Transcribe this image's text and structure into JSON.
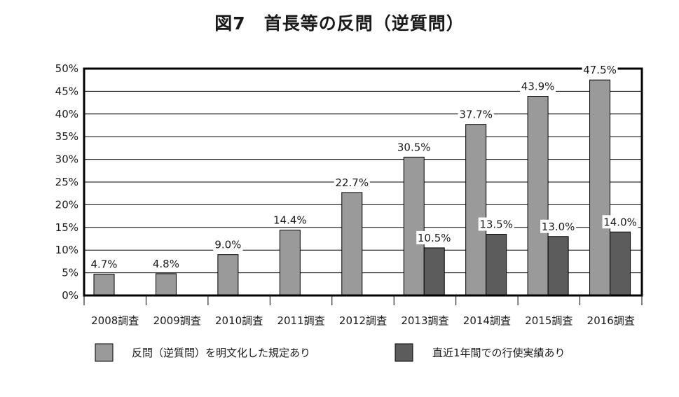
{
  "chart_data": {
    "type": "bar",
    "title": "図7　首長等の反問（逆質問）",
    "categories": [
      "2008調査",
      "2009調査",
      "2010調査",
      "2011調査",
      "2012調査",
      "2013調査",
      "2014調査",
      "2015調査",
      "2016調査"
    ],
    "series": [
      {
        "name": "反問（逆質問）を明文化した規定あり",
        "color": "#9a9a9a",
        "values": [
          4.7,
          4.8,
          9.0,
          14.4,
          22.7,
          30.5,
          37.7,
          43.9,
          47.5
        ],
        "labels": [
          "4.7%",
          "4.8%",
          "9.0%",
          "14.4%",
          "22.7%",
          "30.5%",
          "37.7%",
          "43.9%",
          "47.5%"
        ]
      },
      {
        "name": "直近1年間での行使実績あり",
        "color": "#5c5c5c",
        "values": [
          null,
          null,
          null,
          null,
          null,
          10.5,
          13.5,
          13.0,
          14.0
        ],
        "labels": [
          null,
          null,
          null,
          null,
          null,
          "10.5%",
          "13.5%",
          "13.0%",
          "14.0%"
        ]
      }
    ],
    "yticks": [
      "0%",
      "5%",
      "10%",
      "15%",
      "20%",
      "25%",
      "30%",
      "35%",
      "40%",
      "45%",
      "50%"
    ],
    "ylim": [
      0,
      50
    ],
    "grid": true,
    "legend": "bottom",
    "xlabel": "",
    "ylabel": ""
  }
}
